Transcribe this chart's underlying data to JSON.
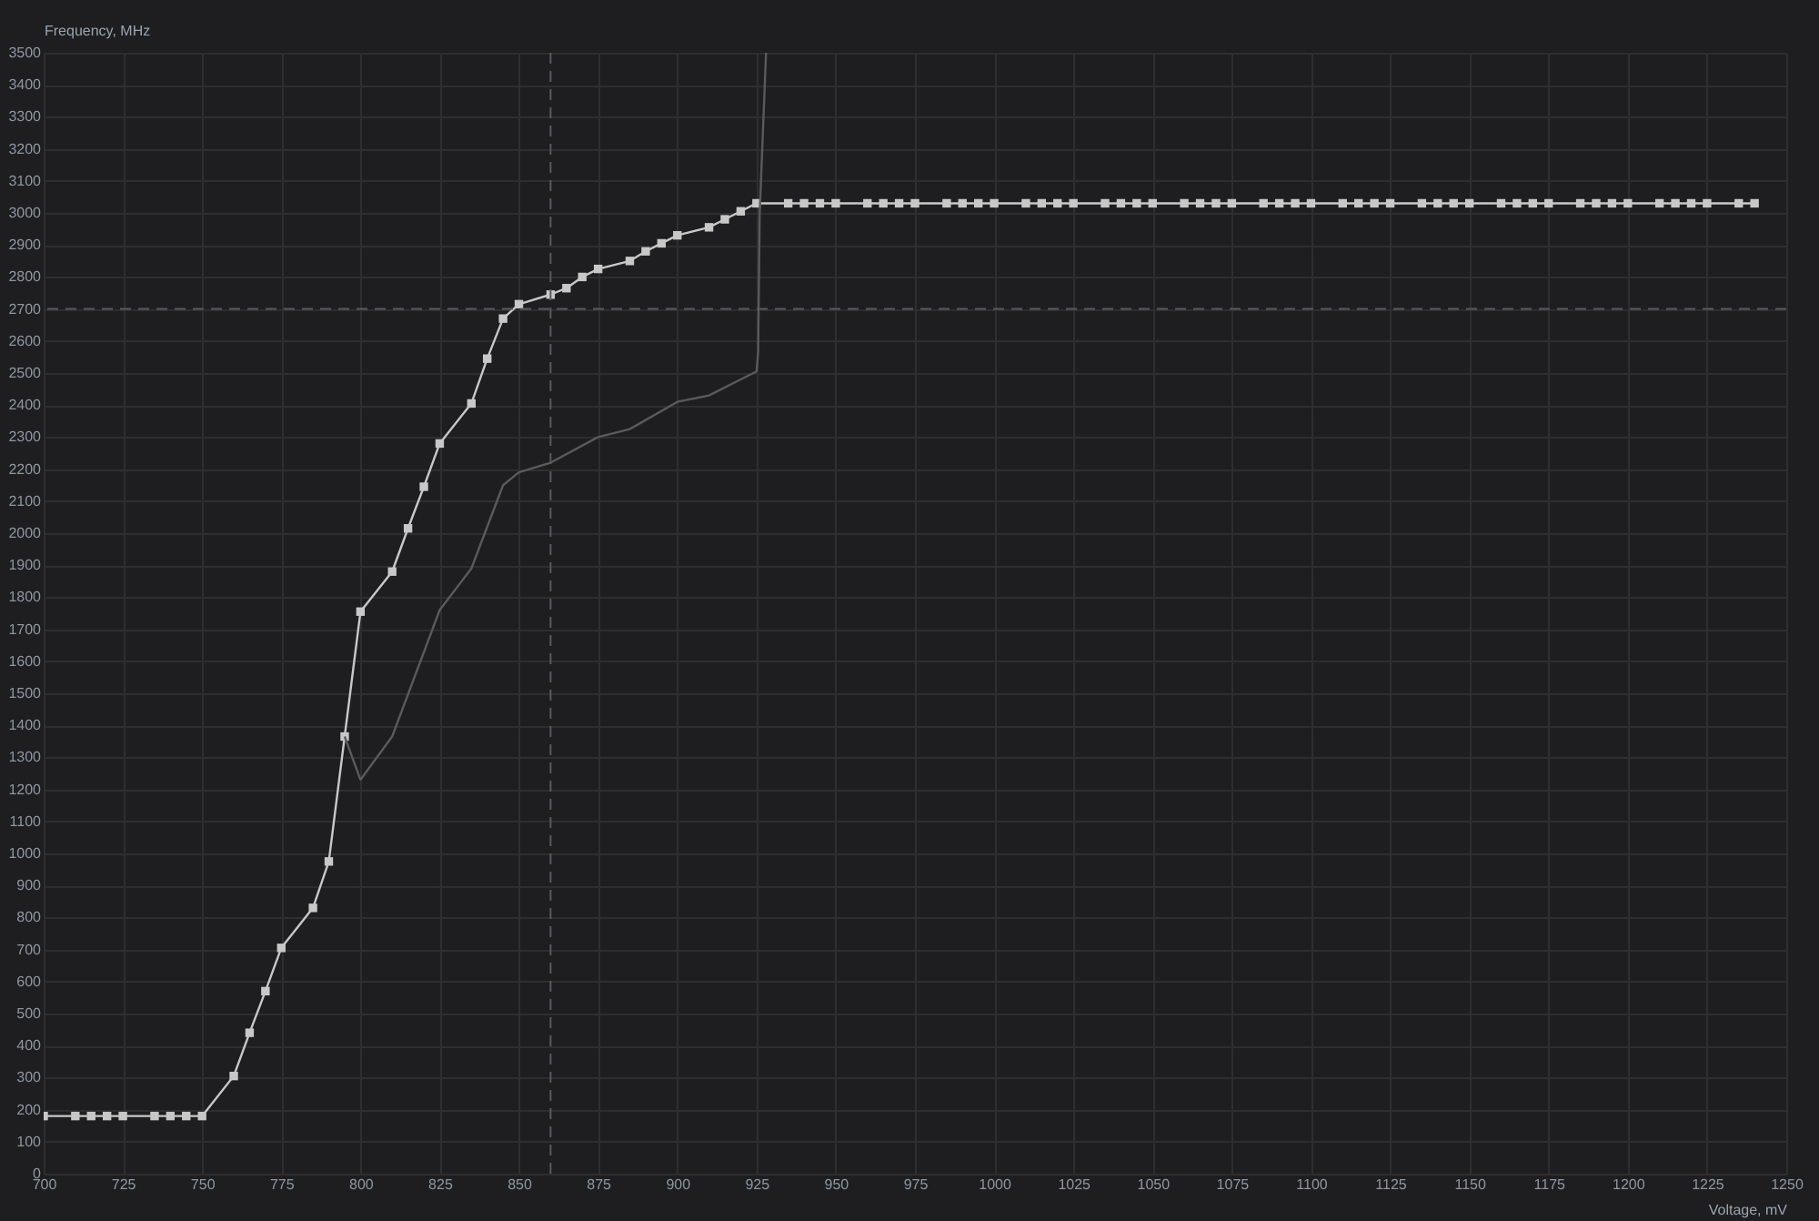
{
  "chart_data": {
    "type": "line",
    "xlabel": "Voltage, mV",
    "ylabel": "Frequency, MHz",
    "xlim": [
      700,
      1250
    ],
    "xticks": [
      700,
      725,
      750,
      775,
      800,
      825,
      850,
      875,
      900,
      925,
      950,
      975,
      1000,
      1025,
      1050,
      1075,
      1100,
      1125,
      1150,
      1175,
      1200,
      1225,
      1250
    ],
    "ylim": [
      0,
      3500
    ],
    "yticks": [
      0,
      100,
      200,
      300,
      400,
      500,
      600,
      700,
      800,
      900,
      1000,
      1100,
      1200,
      1300,
      1400,
      1500,
      1600,
      1700,
      1800,
      1900,
      2000,
      2100,
      2200,
      2300,
      2400,
      2500,
      2600,
      2700,
      2800,
      2900,
      3000,
      3100,
      3200,
      3300,
      3400,
      3500
    ],
    "grid": true,
    "marker": "square",
    "line_style": "solid",
    "ref_lines": [
      {
        "axis": "x",
        "value": 860,
        "line_style": "dashed",
        "color": "#5a5a5e"
      },
      {
        "axis": "y",
        "value": 2700,
        "line_style": "dashed",
        "color": "#5a5a5e"
      }
    ],
    "series": [
      {
        "color": "#c8c8c8",
        "x": [
          700,
          710,
          715,
          720,
          725,
          735,
          740,
          745,
          750,
          760,
          765,
          770,
          775,
          785,
          790,
          795,
          800,
          810,
          815,
          820,
          825,
          835,
          840,
          845,
          850,
          860,
          865,
          870,
          875,
          885,
          890,
          895,
          900,
          910,
          915,
          920,
          925,
          935,
          940,
          945,
          950,
          960,
          965,
          970,
          975,
          985,
          990,
          995,
          1000,
          1010,
          1015,
          1020,
          1025,
          1035,
          1040,
          1045,
          1050,
          1060,
          1065,
          1070,
          1075,
          1085,
          1090,
          1095,
          1100,
          1110,
          1115,
          1120,
          1125,
          1135,
          1140,
          1145,
          1150,
          1160,
          1165,
          1170,
          1175,
          1185,
          1190,
          1195,
          1200,
          1210,
          1215,
          1220,
          1225,
          1235,
          1240
        ],
        "values": [
          180,
          180,
          180,
          180,
          180,
          180,
          180,
          180,
          180,
          305,
          440,
          570,
          705,
          830,
          975,
          1365,
          1755,
          1880,
          2015,
          2145,
          2280,
          2405,
          2545,
          2670,
          2715,
          2745,
          2765,
          2800,
          2825,
          2850,
          2880,
          2905,
          2930,
          2955,
          2980,
          3005,
          3030,
          3030,
          3030,
          3030,
          3030,
          3030,
          3030,
          3030,
          3030,
          3030,
          3030,
          3030,
          3030,
          3030,
          3030,
          3030,
          3030,
          3030,
          3030,
          3030,
          3030,
          3030,
          3030,
          3030,
          3030,
          3030,
          3030,
          3030,
          3030,
          3030,
          3030,
          3030,
          3030,
          3030,
          3030,
          3030,
          3030,
          3030,
          3030,
          3030,
          3030,
          3030,
          3030,
          3030,
          3030,
          3030,
          3030,
          3030,
          3030,
          3030,
          3030
        ]
      },
      {
        "color": "#5a5a5c",
        "marker": "none",
        "x": [
          795,
          800,
          810,
          825,
          835,
          845,
          850,
          860,
          875,
          885,
          900,
          910,
          925,
          925.5,
          926,
          928
        ],
        "values": [
          1365,
          1230,
          1365,
          1760,
          1890,
          2150,
          2190,
          2220,
          2300,
          2325,
          2410,
          2430,
          2505,
          2565,
          3000,
          3500
        ]
      }
    ]
  }
}
